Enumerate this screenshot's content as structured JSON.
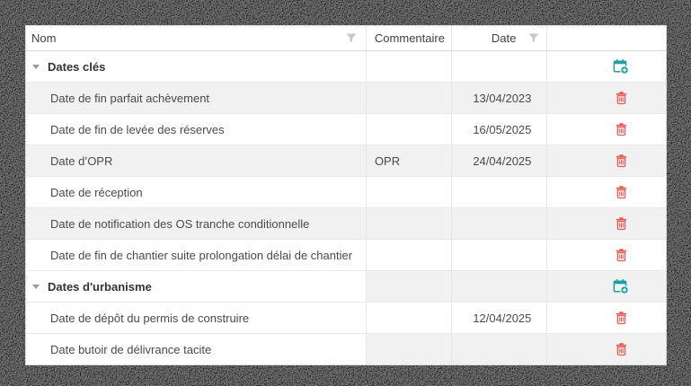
{
  "table": {
    "columns": [
      {
        "label": "Nom",
        "filter": true
      },
      {
        "label": "Commentaire",
        "filter": false
      },
      {
        "label": "Date",
        "filter": true
      },
      {
        "label": "",
        "filter": false
      }
    ],
    "rows": [
      {
        "type": "group",
        "nom": "Dates clés",
        "commentaire": "",
        "date": ""
      },
      {
        "type": "item",
        "nom": "Date de fin parfait achèvement",
        "commentaire": "",
        "date": "13/04/2023"
      },
      {
        "type": "item",
        "nom": "Date de fin de levée des réserves",
        "commentaire": "",
        "date": "16/05/2025"
      },
      {
        "type": "item",
        "nom": "Date d’OPR",
        "commentaire": "OPR",
        "date": "24/04/2025"
      },
      {
        "type": "item",
        "nom": "Date de réception",
        "commentaire": "",
        "date": ""
      },
      {
        "type": "item",
        "nom": "Date de notification des OS tranche conditionnelle",
        "commentaire": "",
        "date": ""
      },
      {
        "type": "item",
        "nom": "Date de fin de chantier suite prolongation délai de chantier",
        "commentaire": "",
        "date": ""
      },
      {
        "type": "group",
        "nom": "Dates d'urbanisme",
        "commentaire": "",
        "date": ""
      },
      {
        "type": "item",
        "nom": "Date de dépôt du permis de construire",
        "commentaire": "",
        "date": "12/04/2025"
      },
      {
        "type": "item",
        "nom": "Date butoir de délivrance tacite",
        "commentaire": "",
        "date": ""
      }
    ]
  },
  "colors": {
    "accent_teal": "#1f9fa4",
    "danger_red": "#e9594f",
    "alt_row": "#f1f1f1",
    "filter_icon": "#c7c7c7"
  },
  "icons": {
    "group_action": "calendar-add-icon",
    "item_action": "trash-icon",
    "column_filter": "filter-icon",
    "group_toggle": "chevron-down-icon"
  }
}
